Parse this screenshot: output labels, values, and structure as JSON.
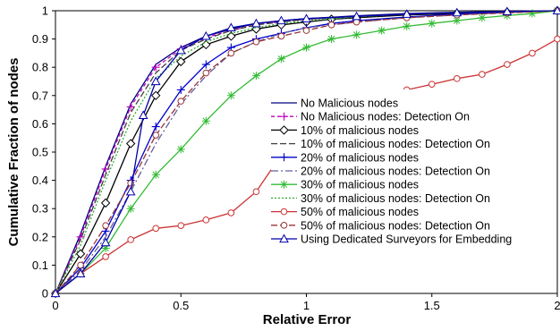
{
  "chart_data": {
    "type": "line",
    "title": "",
    "xlabel": "Relative Error",
    "ylabel": "Cumulative Fraction of nodes",
    "xlim": [
      0,
      2
    ],
    "ylim": [
      0,
      1
    ],
    "x_ticks": [
      "0",
      "0.5",
      "1",
      "1.5",
      "2"
    ],
    "y_ticks": [
      "0",
      "0.1",
      "0.2",
      "0.3",
      "0.4",
      "0.5",
      "0.6",
      "0.7",
      "0.8",
      "0.9",
      "1"
    ],
    "grid": false,
    "legend_position": "inside-right",
    "series": [
      {
        "name": "No Malicious nodes",
        "color": "#000080",
        "dash": "solid",
        "marker": "none",
        "x": [
          0,
          0.1,
          0.2,
          0.3,
          0.4,
          0.5,
          0.6,
          0.7,
          0.8,
          0.9,
          1.0,
          1.2,
          1.4,
          1.6,
          1.8,
          2.0
        ],
        "y": [
          0,
          0.21,
          0.45,
          0.67,
          0.81,
          0.87,
          0.91,
          0.935,
          0.955,
          0.965,
          0.972,
          0.982,
          0.99,
          0.995,
          0.998,
          1.0
        ]
      },
      {
        "name": "No Malicious nodes: Detection On",
        "color": "#c000c0",
        "dash": "4,3",
        "marker": "plus",
        "x": [
          0,
          0.1,
          0.2,
          0.3,
          0.4,
          0.5,
          0.6,
          0.7,
          0.8,
          0.9,
          1.0,
          1.2,
          1.4,
          1.6,
          1.8,
          2.0
        ],
        "y": [
          0,
          0.2,
          0.44,
          0.66,
          0.8,
          0.865,
          0.905,
          0.93,
          0.95,
          0.962,
          0.97,
          0.98,
          0.988,
          0.993,
          0.997,
          1.0
        ]
      },
      {
        "name": "10% of malicious nodes",
        "color": "#000000",
        "dash": "solid",
        "marker": "diamond",
        "x": [
          0,
          0.1,
          0.2,
          0.3,
          0.4,
          0.5,
          0.6,
          0.7,
          0.8,
          0.9,
          1.0,
          1.1,
          1.2,
          1.4,
          1.6,
          1.8,
          2.0
        ],
        "y": [
          0,
          0.14,
          0.32,
          0.53,
          0.7,
          0.82,
          0.88,
          0.91,
          0.935,
          0.95,
          0.96,
          0.97,
          0.975,
          0.985,
          0.99,
          0.995,
          1.0
        ]
      },
      {
        "name": "10% of malicious nodes: Detection On",
        "color": "#404040",
        "dash": "7,3",
        "marker": "none",
        "x": [
          0,
          0.1,
          0.2,
          0.3,
          0.4,
          0.5,
          0.6,
          0.7,
          0.8,
          0.9,
          1.0,
          1.2,
          1.4,
          1.6,
          1.8,
          2.0
        ],
        "y": [
          0,
          0.19,
          0.42,
          0.64,
          0.78,
          0.86,
          0.9,
          0.93,
          0.95,
          0.96,
          0.97,
          0.98,
          0.987,
          0.993,
          0.997,
          1.0
        ]
      },
      {
        "name": "20% of malicious nodes",
        "color": "#0000cc",
        "dash": "solid",
        "marker": "plus",
        "x": [
          0,
          0.1,
          0.2,
          0.3,
          0.4,
          0.5,
          0.6,
          0.7,
          0.8,
          0.9,
          1.0,
          1.1,
          1.2,
          1.4,
          1.6,
          1.8,
          2.0
        ],
        "y": [
          0,
          0.09,
          0.22,
          0.4,
          0.59,
          0.72,
          0.81,
          0.87,
          0.9,
          0.92,
          0.94,
          0.955,
          0.965,
          0.978,
          0.988,
          0.994,
          1.0
        ]
      },
      {
        "name": "20% of malicious nodes: Detection On",
        "color": "#6060a0",
        "dash": "8,3,2,3",
        "marker": "none",
        "x": [
          0,
          0.1,
          0.2,
          0.3,
          0.4,
          0.5,
          0.6,
          0.7,
          0.8,
          0.9,
          1.0,
          1.2,
          1.4,
          1.6,
          1.8,
          2.0
        ],
        "y": [
          0,
          0.08,
          0.2,
          0.36,
          0.53,
          0.67,
          0.77,
          0.85,
          0.89,
          0.92,
          0.94,
          0.96,
          0.975,
          0.985,
          0.993,
          1.0
        ]
      },
      {
        "name": "30% of malicious nodes",
        "color": "#33bb33",
        "dash": "solid",
        "marker": "star",
        "x": [
          0,
          0.1,
          0.2,
          0.3,
          0.4,
          0.5,
          0.6,
          0.7,
          0.8,
          0.9,
          1.0,
          1.1,
          1.2,
          1.3,
          1.4,
          1.5,
          1.6,
          1.7,
          1.8,
          1.9,
          2.0
        ],
        "y": [
          0,
          0.07,
          0.16,
          0.3,
          0.42,
          0.51,
          0.61,
          0.7,
          0.77,
          0.83,
          0.87,
          0.9,
          0.915,
          0.93,
          0.945,
          0.955,
          0.965,
          0.975,
          0.983,
          0.99,
          1.0
        ]
      },
      {
        "name": "30% of malicious nodes: Detection On",
        "color": "#33aa33",
        "dash": "2,2",
        "marker": "none",
        "x": [
          0,
          0.1,
          0.2,
          0.3,
          0.4,
          0.5,
          0.6,
          0.7,
          0.8,
          0.9,
          1.0,
          1.2,
          1.4,
          1.6,
          1.8,
          2.0
        ],
        "y": [
          0,
          0.17,
          0.4,
          0.61,
          0.76,
          0.84,
          0.89,
          0.92,
          0.94,
          0.955,
          0.965,
          0.978,
          0.988,
          0.994,
          0.997,
          1.0
        ]
      },
      {
        "name": "50% of malicious nodes",
        "color": "#cc3333",
        "dash": "solid",
        "marker": "circle",
        "x": [
          0,
          0.1,
          0.2,
          0.3,
          0.4,
          0.5,
          0.6,
          0.7,
          0.8,
          0.9,
          1.0,
          1.1,
          1.2,
          1.3,
          1.4,
          1.5,
          1.6,
          1.7,
          1.8,
          1.9,
          2.0
        ],
        "y": [
          0,
          0.07,
          0.13,
          0.19,
          0.23,
          0.24,
          0.26,
          0.285,
          0.36,
          0.49,
          0.6,
          0.65,
          0.68,
          0.7,
          0.72,
          0.74,
          0.76,
          0.775,
          0.81,
          0.85,
          0.9
        ]
      },
      {
        "name": "50% of malicious nodes: Detection On",
        "color": "#993333",
        "dash": "7,3",
        "marker": "circle",
        "x": [
          0,
          0.1,
          0.2,
          0.3,
          0.4,
          0.5,
          0.6,
          0.7,
          0.8,
          0.9,
          1.0,
          1.1,
          1.2,
          1.4,
          1.6,
          1.8,
          2.0
        ],
        "y": [
          0,
          0.1,
          0.24,
          0.39,
          0.56,
          0.68,
          0.78,
          0.85,
          0.89,
          0.91,
          0.93,
          0.95,
          0.96,
          0.975,
          0.985,
          0.992,
          1.0
        ]
      },
      {
        "name": "Using Dedicated Surveyors for Embedding",
        "color": "#0000aa",
        "dash": "solid",
        "marker": "triangle",
        "x": [
          0,
          0.1,
          0.2,
          0.3,
          0.35,
          0.4,
          0.5,
          0.6,
          0.7,
          0.8,
          0.9,
          1.0,
          1.2,
          1.4,
          1.6,
          1.8,
          2.0
        ],
        "y": [
          0,
          0.07,
          0.18,
          0.36,
          0.63,
          0.75,
          0.86,
          0.91,
          0.94,
          0.955,
          0.965,
          0.972,
          0.98,
          0.988,
          0.993,
          0.997,
          1.0
        ]
      }
    ]
  }
}
